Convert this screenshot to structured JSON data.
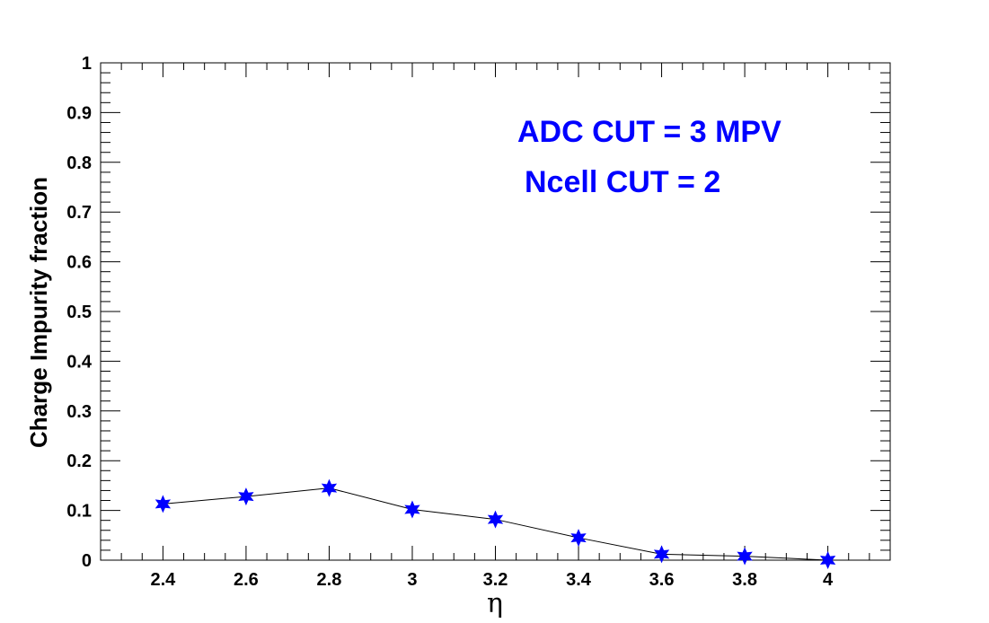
{
  "chart_data": {
    "type": "line",
    "title": "",
    "xlabel": "η",
    "ylabel": "Charge Impurity fraction",
    "xlim": [
      2.25,
      4.15
    ],
    "ylim": [
      0,
      1
    ],
    "x_ticks": [
      2.4,
      2.6,
      2.8,
      3.0,
      3.2,
      3.4,
      3.6,
      3.8,
      4.0
    ],
    "x_tick_labels": [
      "2.4",
      "2.6",
      "2.8",
      "3",
      "3.2",
      "3.4",
      "3.6",
      "3.8",
      "4"
    ],
    "y_ticks": [
      0,
      0.1,
      0.2,
      0.3,
      0.4,
      0.5,
      0.6,
      0.7,
      0.8,
      0.9,
      1
    ],
    "y_tick_labels": [
      "0",
      "0.1",
      "0.2",
      "0.3",
      "0.4",
      "0.5",
      "0.6",
      "0.7",
      "0.8",
      "0.9",
      "1"
    ],
    "grid": false,
    "series": [
      {
        "marker": "star",
        "marker_color": "#0000ff",
        "line_color": "#000000",
        "x": [
          2.4,
          2.6,
          2.8,
          3.0,
          3.2,
          3.4,
          3.6,
          3.8,
          4.0
        ],
        "y": [
          0.113,
          0.128,
          0.145,
          0.102,
          0.082,
          0.045,
          0.012,
          0.008,
          0.0
        ]
      }
    ],
    "annotations": [
      {
        "text": "ADC CUT = 3 MPV",
        "color": "#0000ff"
      },
      {
        "text": "Ncell CUT = 2",
        "color": "#0000ff"
      }
    ]
  }
}
